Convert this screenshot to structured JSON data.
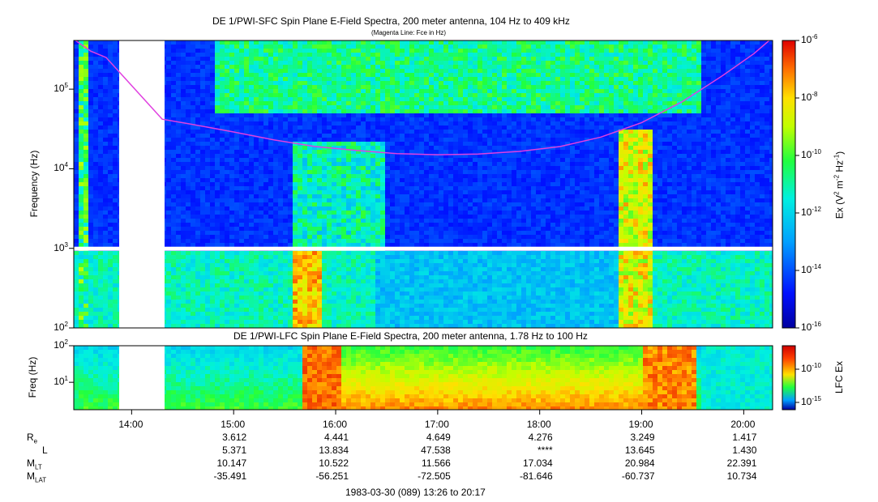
{
  "chart_data": [
    {
      "type": "heatmap",
      "title": "DE 1/PWI-SFC  Spin Plane E-Field Spectra, 200 meter antenna, 104 Hz to 409 kHz",
      "subtitle": "(Magenta Line: Fce in Hz)",
      "ylabel": "Frequency (Hz)",
      "yscale": "log",
      "ylim": [
        100,
        409000
      ],
      "yticks": [
        {
          "base": "10",
          "exp": "2"
        },
        {
          "base": "10",
          "exp": "3"
        },
        {
          "base": "10",
          "exp": "4"
        },
        {
          "base": "10",
          "exp": "5"
        }
      ],
      "colorbar": {
        "label_main": "Ex (V",
        "label_sup1": "2",
        "label_mid": " m",
        "label_sup2": "-2",
        "label_mid2": " Hz",
        "label_sup3": "-1",
        "label_end": ")",
        "scale": "log",
        "range": [
          1e-16,
          1e-06
        ],
        "ticks": [
          {
            "base": "10",
            "exp": "-6"
          },
          {
            "base": "10",
            "exp": "-8"
          },
          {
            "base": "10",
            "exp": "-10"
          },
          {
            "base": "10",
            "exp": "-12"
          },
          {
            "base": "10",
            "exp": "-14"
          },
          {
            "base": "10",
            "exp": "-16"
          }
        ]
      },
      "fce_line": {
        "color": "#e040e0",
        "time_hours": [
          13.45,
          13.6,
          13.75,
          14.3,
          14.6,
          15.0,
          15.4,
          15.8,
          16.2,
          16.6,
          17.0,
          17.4,
          17.8,
          18.2,
          18.6,
          19.0,
          19.4,
          19.8,
          20.1,
          20.25
        ],
        "freq_hz": [
          409000,
          300000,
          250000,
          42000,
          36000,
          29000,
          23000,
          19000,
          17000,
          15500,
          15000,
          15300,
          16500,
          19000,
          25000,
          38000,
          70000,
          150000,
          280000,
          409000
        ]
      }
    },
    {
      "type": "heatmap",
      "title": "DE 1/PWI-LFC  Spin Plane E-Field Spectra, 200 meter antenna, 1.78 Hz to 100 Hz",
      "ylabel": "Freq (Hz)",
      "yscale": "log",
      "ylim": [
        1.78,
        100
      ],
      "yticks": [
        {
          "base": "10",
          "exp": "1"
        },
        {
          "base": "10",
          "exp": "2"
        }
      ],
      "colorbar": {
        "label": "LFC Ex",
        "scale": "log",
        "ticks": [
          {
            "base": "10",
            "exp": "-10"
          },
          {
            "base": "10",
            "exp": "-15"
          }
        ]
      }
    }
  ],
  "time_axis": {
    "xlim_hours": [
      13.433,
      20.283
    ],
    "ticks": [
      {
        "label": "14:00",
        "hour": 14
      },
      {
        "label": "15:00",
        "hour": 15
      },
      {
        "label": "16:00",
        "hour": 16
      },
      {
        "label": "17:00",
        "hour": 17
      },
      {
        "label": "18:00",
        "hour": 18
      },
      {
        "label": "19:00",
        "hour": 19
      },
      {
        "label": "20:00",
        "hour": 20
      }
    ],
    "footer": "1983-03-30 (089) 13:26 to 20:17"
  },
  "ephemeris": {
    "labels": [
      {
        "main": "R",
        "sub": "e"
      },
      {
        "main": "L",
        "sub": ""
      },
      {
        "main": "M",
        "sub": "LT"
      },
      {
        "main": "M",
        "sub": "LAT"
      }
    ],
    "columns": [
      {
        "hour": 15,
        "values": [
          "3.612",
          "5.371",
          "10.147",
          "-35.491"
        ]
      },
      {
        "hour": 16,
        "values": [
          "4.441",
          "13.834",
          "10.522",
          "-56.251"
        ]
      },
      {
        "hour": 17,
        "values": [
          "4.649",
          "47.538",
          "11.566",
          "-72.505"
        ]
      },
      {
        "hour": 18,
        "values": [
          "4.276",
          "****",
          "17.034",
          "-81.646"
        ]
      },
      {
        "hour": 19,
        "values": [
          "3.249",
          "13.645",
          "20.984",
          "-60.737"
        ]
      },
      {
        "hour": 20,
        "values": [
          "1.417",
          "1.430",
          "22.391",
          "10.734"
        ]
      }
    ]
  }
}
